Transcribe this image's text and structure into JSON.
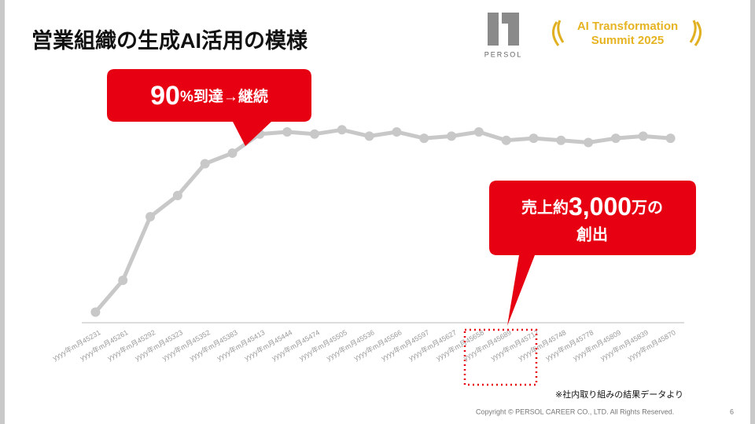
{
  "header": {
    "title": "営業組織の生成AI活用の模様",
    "logo": "PERSOL",
    "event_line1": "AI Transformation",
    "event_line2": "Summit 2025"
  },
  "chart_data": {
    "type": "line",
    "categories": [
      "yyyy年m月45231",
      "yyyy年m月45261",
      "yyyy年m月45292",
      "yyyy年m月45323",
      "yyyy年m月45352",
      "yyyy年m月45383",
      "yyyy年m月45413",
      "yyyy年m月45444",
      "yyyy年m月45474",
      "yyyy年m月45505",
      "yyyy年m月45536",
      "yyyy年m月45566",
      "yyyy年m月45597",
      "yyyy年m月45627",
      "yyyy年m月45658",
      "yyyy年m月45689",
      "yyyy年m月45717",
      "yyyy年m月45748",
      "yyyy年m月45778",
      "yyyy年m月45809",
      "yyyy年m月45839",
      "yyyy年m月45870"
    ],
    "values": [
      5,
      20,
      50,
      60,
      75,
      80,
      89,
      90,
      89,
      91,
      88,
      90,
      87,
      88,
      90,
      86,
      87,
      86,
      85,
      87,
      88,
      87
    ],
    "color": "#c8c8c8",
    "ylim": [
      0,
      100
    ]
  },
  "callouts": [
    {
      "big": "90",
      "small": "%到達→継続"
    },
    {
      "pre": "売上約",
      "big": "3,000",
      "post": "万の",
      "line2": "創出"
    }
  ],
  "note": "※社内取り組みの結果データより",
  "footer": {
    "copyright": "Copyright © PERSOL CAREER CO., LTD. All Rights Reserved.",
    "page": "6"
  }
}
